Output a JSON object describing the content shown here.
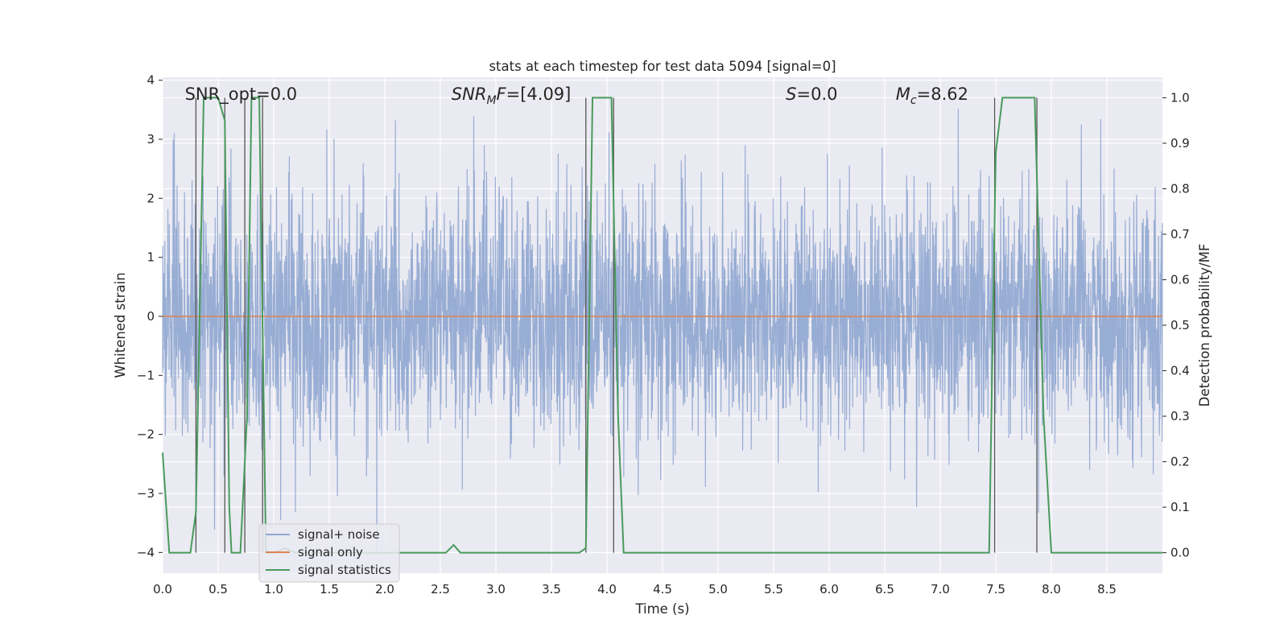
{
  "chart_data": {
    "type": "line",
    "title": "stats at each timestep for test data 5094 [signal=0]",
    "xlabel": "Time (s)",
    "ylabel": "Whitened strain",
    "y2label": "Detection probability/MF",
    "xlim": [
      0,
      9.0
    ],
    "ylim": [
      -4.35,
      4.05
    ],
    "y2lim": [
      -0.045,
      1.045
    ],
    "x_ticks": [
      "0.0",
      "0.5",
      "1.0",
      "1.5",
      "2.0",
      "2.5",
      "3.0",
      "3.5",
      "4.0",
      "4.5",
      "5.0",
      "5.5",
      "6.0",
      "6.5",
      "7.0",
      "7.5",
      "8.0",
      "8.5"
    ],
    "x_tick_values": [
      0,
      0.5,
      1,
      1.5,
      2,
      2.5,
      3,
      3.5,
      4,
      4.5,
      5,
      5.5,
      6,
      6.5,
      7,
      7.5,
      8,
      8.5
    ],
    "y_ticks": [
      "−4",
      "−3",
      "−2",
      "−1",
      "0",
      "1",
      "2",
      "3",
      "4"
    ],
    "y_tick_values": [
      -4,
      -3,
      -2,
      -1,
      0,
      1,
      2,
      3,
      4
    ],
    "y2_ticks": [
      "0.0",
      "0.1",
      "0.2",
      "0.3",
      "0.4",
      "0.5",
      "0.6",
      "0.7",
      "0.8",
      "0.9",
      "1.0"
    ],
    "y2_tick_values": [
      0,
      0.1,
      0.2,
      0.3,
      0.4,
      0.5,
      0.6,
      0.7,
      0.8,
      0.9,
      1.0
    ],
    "grid": true,
    "legend_position": "lower-left",
    "annotations": [
      {
        "id": "snr_opt",
        "parts": [
          {
            "t": "SNR_opt=0.0",
            "i": false
          }
        ],
        "x": 0.2,
        "y": 3.67
      },
      {
        "id": "snr_mf",
        "parts": [
          {
            "t": "SNR",
            "i": true
          },
          {
            "t": "M",
            "i": true,
            "sub": true
          },
          {
            "t": "F",
            "i": true
          },
          {
            "t": "=[4.09]",
            "i": false
          }
        ],
        "x": 2.6,
        "y": 3.67
      },
      {
        "id": "s",
        "parts": [
          {
            "t": "S",
            "i": true
          },
          {
            "t": "=0.0",
            "i": false
          }
        ],
        "x": 5.61,
        "y": 3.67
      },
      {
        "id": "mc",
        "parts": [
          {
            "t": "M",
            "i": true
          },
          {
            "t": "c",
            "i": true,
            "sub": true
          },
          {
            "t": "=8.62",
            "i": false
          }
        ],
        "x": 6.6,
        "y": 3.67
      }
    ],
    "series": [
      {
        "name": "signal+ noise",
        "color": "#8fa6d0",
        "kind": "noise",
        "x_range": [
          0,
          9.0
        ],
        "noise_sd": 1.0
      },
      {
        "name": "signal only",
        "color": "#dd8452",
        "kind": "line",
        "x": [
          0,
          9.0
        ],
        "y": [
          0,
          0
        ]
      },
      {
        "name": "signal statistics",
        "color": "#4a9a5c",
        "kind": "line",
        "axis": "right",
        "x": [
          0,
          0.06,
          0.25,
          0.3,
          0.37,
          0.42,
          0.5,
          0.56,
          0.6,
          0.62,
          0.7,
          0.76,
          0.8,
          0.87,
          0.93,
          0.96,
          1.0,
          1.1,
          1.2,
          1.3,
          2.55,
          2.62,
          2.68,
          3.0,
          3.5,
          3.75,
          3.81,
          3.87,
          4.04,
          4.1,
          4.15,
          4.2,
          4.5,
          5.0,
          6.0,
          7.0,
          7.44,
          7.5,
          7.56,
          7.85,
          7.93,
          8.0,
          8.5,
          9.0
        ],
        "y": [
          0.22,
          0.0,
          0.0,
          0.09,
          1.0,
          1.0,
          1.0,
          0.95,
          0.1,
          0.0,
          0.0,
          0.3,
          1.0,
          1.0,
          0.0,
          0.0,
          0.0,
          0.01,
          0.0,
          0.0,
          0.0,
          0.017,
          0.0,
          0.0,
          0.0,
          0.0,
          0.01,
          1.0,
          1.0,
          0.3,
          0.0,
          0.0,
          0.0,
          0.0,
          0.0,
          0.0,
          0.0,
          0.88,
          1.0,
          1.0,
          0.3,
          0.0,
          0.0,
          0.0
        ]
      }
    ],
    "vlines": [
      0.3,
      0.56,
      0.74,
      0.9,
      3.81,
      4.06,
      7.49,
      7.87
    ]
  }
}
